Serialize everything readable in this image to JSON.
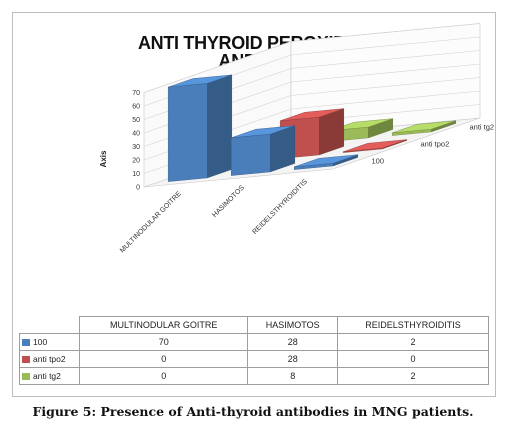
{
  "chart_data": {
    "type": "bar",
    "subtype": "3d-column",
    "title_lines": [
      "ANTI THYROID PEROXIDASE",
      "AND ANTI"
    ],
    "ylabel": "Axis",
    "xlabel": "",
    "ylim": [
      0,
      70
    ],
    "yticks": [
      0,
      10,
      20,
      30,
      40,
      50,
      60,
      70
    ],
    "grid": true,
    "categories": [
      "MULTINODULAR GOITRE",
      "HASIMOTOS",
      "REIDELSTHYROIDITIS"
    ],
    "series": [
      {
        "name": "100",
        "color": "#4a7ebb",
        "values": [
          70,
          28,
          2
        ]
      },
      {
        "name": "anti tpo2",
        "color": "#c0504d",
        "values": [
          0,
          28,
          0
        ]
      },
      {
        "name": "anti tg2",
        "color": "#9bbb59",
        "values": [
          0,
          8,
          2
        ]
      }
    ],
    "legend": "data-table-bottom"
  },
  "caption": "Figure 5: Presence of Anti-thyroid antibodies in MNG patients."
}
